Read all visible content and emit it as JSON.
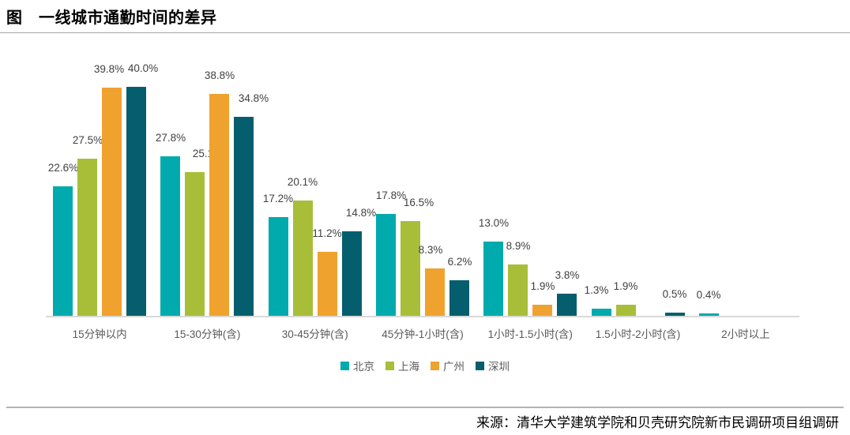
{
  "page": {
    "title": "图　一线城市通勤时间的差异",
    "source": "来源：清华大学建筑学院和贝壳研究院新市民调研项目组调研"
  },
  "chart_data": {
    "type": "bar",
    "title": "一线城市通勤时间的差异",
    "categories": [
      "15分钟以内",
      "15-30分钟(含)",
      "30-45分钟(含)",
      "45分钟-1小时(含)",
      "1小时-1.5小时(含)",
      "1.5小时-2小时(含)",
      "2小时以上"
    ],
    "series": [
      {
        "name": "北京",
        "color": "#00aaad",
        "values": [
          22.6,
          27.8,
          17.2,
          17.8,
          13.0,
          1.3,
          0.4
        ]
      },
      {
        "name": "上海",
        "color": "#a8be38",
        "values": [
          27.5,
          25.1,
          20.1,
          16.5,
          8.9,
          1.9,
          null
        ]
      },
      {
        "name": "广州",
        "color": "#f0a22e",
        "values": [
          39.8,
          38.8,
          11.2,
          8.3,
          1.9,
          null,
          null
        ]
      },
      {
        "name": "深圳",
        "color": "#045e6e",
        "values": [
          40.0,
          34.8,
          14.8,
          6.2,
          3.8,
          0.5,
          null
        ]
      }
    ],
    "value_suffix": "%",
    "value_decimals": 1,
    "ylim": [
      0,
      40
    ],
    "grid": false,
    "y_axis_visible": false,
    "data_labels": "outside-end",
    "legend_position": "bottom",
    "axis_line_color": "#d9d9d9",
    "label_color": "#404040",
    "category_label_color": "#595959"
  }
}
